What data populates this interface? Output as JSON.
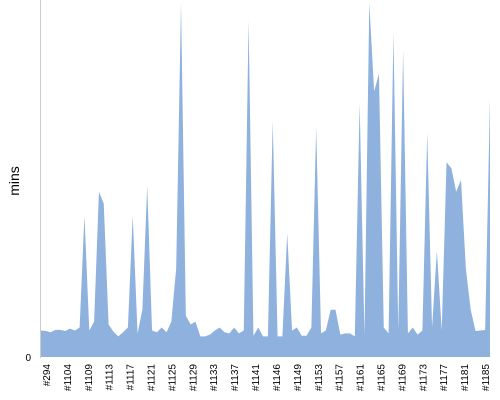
{
  "chart_data": {
    "type": "area",
    "title": "",
    "xlabel": "",
    "ylabel": "mins",
    "y_tick_labels": [
      "0"
    ],
    "ylim": [
      0,
      60
    ],
    "grid": false,
    "legend": "none",
    "colors": {
      "area": "#8fb1dd",
      "axis": "#cccccc"
    },
    "x_tick_labels": [
      "#294",
      "#1104",
      "#1109",
      "#1113",
      "#1117",
      "#1121",
      "#1125",
      "#1129",
      "#1133",
      "#1137",
      "#1141",
      "#1146",
      "#1149",
      "#1153",
      "#1157",
      "#1161",
      "#1165",
      "#1169",
      "#1173",
      "#1177",
      "#1181",
      "#1185"
    ],
    "series": [
      {
        "values": [
          4.5,
          4.4,
          4.2,
          4.6,
          4.6,
          4.4,
          4.8,
          4.5,
          5.0,
          24.0,
          4.5,
          6.0,
          28.0,
          26.0,
          5.5,
          4.3,
          3.5,
          4.2,
          5.0,
          24.0,
          4.0,
          8.0,
          29.0,
          4.5,
          4.2,
          5.0,
          4.2,
          6.0,
          15.0,
          60.0,
          7.0,
          5.5,
          6.0,
          3.5,
          3.5,
          3.8,
          4.5,
          5.0,
          4.2,
          4.0,
          5.0,
          4.0,
          4.5,
          57.0,
          3.6,
          5.0,
          3.5,
          3.5,
          40.0,
          3.5,
          3.5,
          21.0,
          4.5,
          5.0,
          3.6,
          3.6,
          5.0,
          39.0,
          4.0,
          4.5,
          8.0,
          8.0,
          3.8,
          4.0,
          4.0,
          3.5,
          43.0,
          3.6,
          60.0,
          45.0,
          48.0,
          5.0,
          4.0,
          55.0,
          4.5,
          52.0,
          4.0,
          5.0,
          3.8,
          4.5,
          38.0,
          5.0,
          18.0,
          4.5,
          33.0,
          32.0,
          28.0,
          30.0,
          15.0,
          8.0,
          4.4,
          4.5,
          4.6,
          44.0
        ]
      }
    ]
  }
}
